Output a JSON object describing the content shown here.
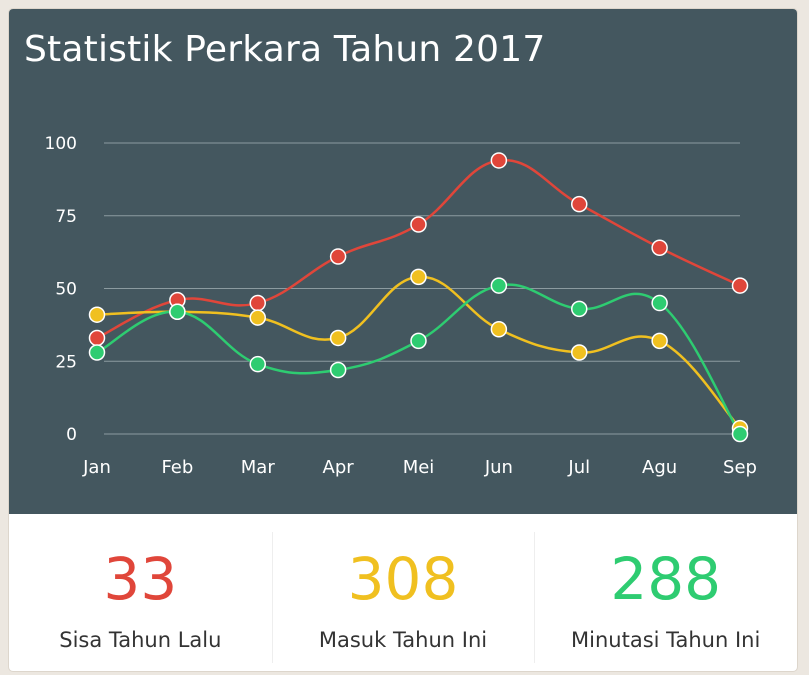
{
  "colors": {
    "panel_bg": "#44575f",
    "grid": "#8c9ba0",
    "axis_text": "#ffffff",
    "red": "#e0463a",
    "yellow": "#f0c020",
    "green": "#2ecc71"
  },
  "chart_data": {
    "type": "line",
    "title": "Statistik Perkara Tahun 2017",
    "categories": [
      "Jan",
      "Feb",
      "Mar",
      "Apr",
      "Mei",
      "Jun",
      "Jul",
      "Agu",
      "Sep"
    ],
    "ylim": [
      0,
      100
    ],
    "yticks": [
      0,
      25,
      50,
      75,
      100
    ],
    "grid": true,
    "smooth": true,
    "series": [
      {
        "color": "#e0463a",
        "values": [
          33,
          46,
          45,
          61,
          72,
          94,
          79,
          64,
          51
        ]
      },
      {
        "color": "#f0c020",
        "values": [
          41,
          42,
          40,
          33,
          54,
          36,
          28,
          32,
          2
        ]
      },
      {
        "color": "#2ecc71",
        "values": [
          28,
          42,
          24,
          22,
          32,
          51,
          43,
          45,
          0
        ]
      }
    ]
  },
  "stats": [
    {
      "value": "33",
      "label": "Sisa Tahun Lalu",
      "color": "#e0463a"
    },
    {
      "value": "308",
      "label": "Masuk Tahun Ini",
      "color": "#f0c020"
    },
    {
      "value": "288",
      "label": "Minutasi Tahun Ini",
      "color": "#2ecc71"
    }
  ]
}
